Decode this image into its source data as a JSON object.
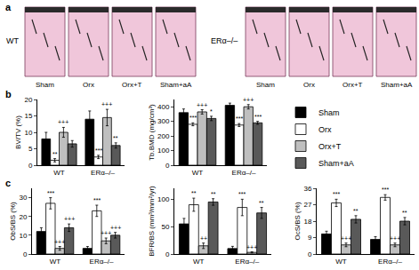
{
  "panel_labels": [
    "a",
    "b",
    "c"
  ],
  "image_panel": {
    "groups": [
      "WT",
      "ERα–/–"
    ],
    "columns": [
      "Sham",
      "Orx",
      "Orx+T",
      "Sham+aA"
    ]
  },
  "chart_data": [
    {
      "type": "bar",
      "y_label": "BV/TV (%)",
      "categories": [
        "WT",
        "ERα–/–"
      ],
      "ylim": [
        0,
        20
      ],
      "yticks": [
        0,
        5,
        10,
        15,
        20
      ],
      "legend": "right",
      "series": [
        {
          "name": "Sham",
          "color": "#000000",
          "values": [
            8,
            14
          ],
          "errors": [
            2,
            2.5
          ],
          "significance": [
            null,
            null
          ]
        },
        {
          "name": "Orx",
          "color": "#ffffff",
          "values": [
            1.5,
            2.5
          ],
          "errors": [
            0.5,
            0.5
          ],
          "significance": [
            "**",
            "***"
          ]
        },
        {
          "name": "Orx+T",
          "color": "#bfbfbf",
          "values": [
            10,
            14.5
          ],
          "errors": [
            1.5,
            2.5
          ],
          "significance": [
            "+++",
            "+++"
          ]
        },
        {
          "name": "Sham+aA",
          "color": "#595959",
          "values": [
            6.5,
            6
          ],
          "errors": [
            1,
            0.8
          ],
          "significance": [
            null,
            "**"
          ]
        }
      ]
    },
    {
      "type": "bar",
      "y_label": "Tb.BMD (mg/cm³)",
      "categories": [
        "WT",
        "ERα–/–"
      ],
      "ylim": [
        0,
        450
      ],
      "yticks": [
        0,
        100,
        200,
        300,
        400
      ],
      "series": [
        {
          "name": "Sham",
          "color": "#000000",
          "values": [
            360,
            410
          ],
          "errors": [
            25,
            15
          ],
          "significance": [
            null,
            null
          ]
        },
        {
          "name": "Orx",
          "color": "#ffffff",
          "values": [
            280,
            275
          ],
          "errors": [
            10,
            10
          ],
          "significance": [
            "***",
            "***"
          ]
        },
        {
          "name": "Orx+T",
          "color": "#bfbfbf",
          "values": [
            365,
            400
          ],
          "errors": [
            15,
            15
          ],
          "significance": [
            "+++",
            "+++"
          ]
        },
        {
          "name": "Sham+aA",
          "color": "#595959",
          "values": [
            320,
            290
          ],
          "errors": [
            15,
            10
          ],
          "significance": [
            "*",
            "***"
          ]
        }
      ]
    },
    {
      "type": "bar",
      "y_label": "ObS/BS (%)",
      "categories": [
        "WT",
        "ERα–/–"
      ],
      "ylim": [
        0,
        35
      ],
      "yticks": [
        0,
        10,
        20,
        30
      ],
      "series": [
        {
          "name": "Sham",
          "color": "#000000",
          "values": [
            12,
            3
          ],
          "errors": [
            2,
            1
          ],
          "significance": [
            null,
            null
          ]
        },
        {
          "name": "Orx",
          "color": "#ffffff",
          "values": [
            27,
            23
          ],
          "errors": [
            3,
            3
          ],
          "significance": [
            "***",
            "***"
          ]
        },
        {
          "name": "Orx+T",
          "color": "#bfbfbf",
          "values": [
            3,
            7
          ],
          "errors": [
            1,
            1.5
          ],
          "significance": [
            "+++",
            "+++"
          ]
        },
        {
          "name": "Sham+aA",
          "color": "#595959",
          "values": [
            14,
            10
          ],
          "errors": [
            2,
            1.5
          ],
          "significance": [
            "+++",
            "+++"
          ]
        }
      ]
    },
    {
      "type": "bar",
      "y_label": "BFR/BS (mm³/mm²/yr)",
      "categories": [
        "WT",
        "ERα–/–"
      ],
      "ylim": [
        0,
        120
      ],
      "yticks": [
        0,
        50,
        100
      ],
      "series": [
        {
          "name": "Sham",
          "color": "#000000",
          "values": [
            55,
            10
          ],
          "errors": [
            10,
            4
          ],
          "significance": [
            null,
            null
          ]
        },
        {
          "name": "Orx",
          "color": "#ffffff",
          "values": [
            90,
            85
          ],
          "errors": [
            12,
            15
          ],
          "significance": [
            "**",
            "***"
          ]
        },
        {
          "name": "Orx+T",
          "color": "#bfbfbf",
          "values": [
            15,
            3
          ],
          "errors": [
            5,
            1
          ],
          "significance": [
            "++",
            "+++"
          ]
        },
        {
          "name": "Sham+aA",
          "color": "#595959",
          "values": [
            95,
            75
          ],
          "errors": [
            6,
            10
          ],
          "significance": [
            "**",
            "**"
          ]
        }
      ]
    },
    {
      "type": "bar",
      "y_label": "OcS/BS (%)",
      "categories": [
        "WT",
        "ERα–/–"
      ],
      "ylim": [
        0,
        36
      ],
      "yticks": [
        0,
        9,
        18,
        27,
        36
      ],
      "series": [
        {
          "name": "Sham",
          "color": "#000000",
          "values": [
            11,
            8
          ],
          "errors": [
            1.5,
            1.5
          ],
          "significance": [
            null,
            null
          ]
        },
        {
          "name": "Orx",
          "color": "#ffffff",
          "values": [
            28,
            31
          ],
          "errors": [
            2,
            1.5
          ],
          "significance": [
            "***",
            "***"
          ]
        },
        {
          "name": "Orx+T",
          "color": "#bfbfbf",
          "values": [
            5,
            5
          ],
          "errors": [
            1,
            1
          ],
          "significance": [
            "+++",
            "+++"
          ]
        },
        {
          "name": "Sham+aA",
          "color": "#595959",
          "values": [
            19,
            18
          ],
          "errors": [
            2,
            2
          ],
          "significance": [
            "**",
            "**"
          ]
        }
      ]
    }
  ]
}
